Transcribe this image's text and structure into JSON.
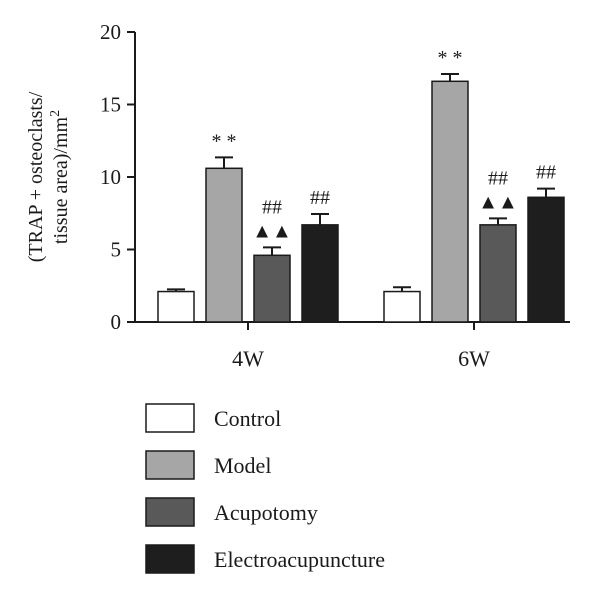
{
  "chart_data": {
    "type": "bar",
    "categories": [
      "4W",
      "6W"
    ],
    "ylabel_line1": "(TRAP + osteoclasts/",
    "ylabel_line2": "tissue area)/mm",
    "ylabel_sup": "2",
    "ylim": [
      0,
      20
    ],
    "yticks": [
      0,
      5,
      10,
      15,
      20
    ],
    "series": [
      {
        "name": "Control",
        "color": "#ffffff",
        "values": [
          2.1,
          2.1
        ],
        "errors": [
          0.15,
          0.3
        ],
        "annotations": [
          "",
          ""
        ]
      },
      {
        "name": "Model",
        "color": "#a6a6a6",
        "values": [
          10.6,
          16.6
        ],
        "errors": [
          0.75,
          0.5
        ],
        "annotations": [
          "* *",
          "* *"
        ]
      },
      {
        "name": "Acupotomy",
        "color": "#595959",
        "values": [
          4.6,
          6.7
        ],
        "errors": [
          0.55,
          0.45
        ],
        "annotations": [
          "##",
          "##"
        ],
        "extra_annotations": [
          "▲▲",
          "▲▲"
        ]
      },
      {
        "name": "Electroacupuncture",
        "color": "#1e1e1e",
        "values": [
          6.7,
          8.6
        ],
        "errors": [
          0.75,
          0.6
        ],
        "annotations": [
          "##",
          "##"
        ]
      }
    ],
    "legend_position": "bottom"
  }
}
